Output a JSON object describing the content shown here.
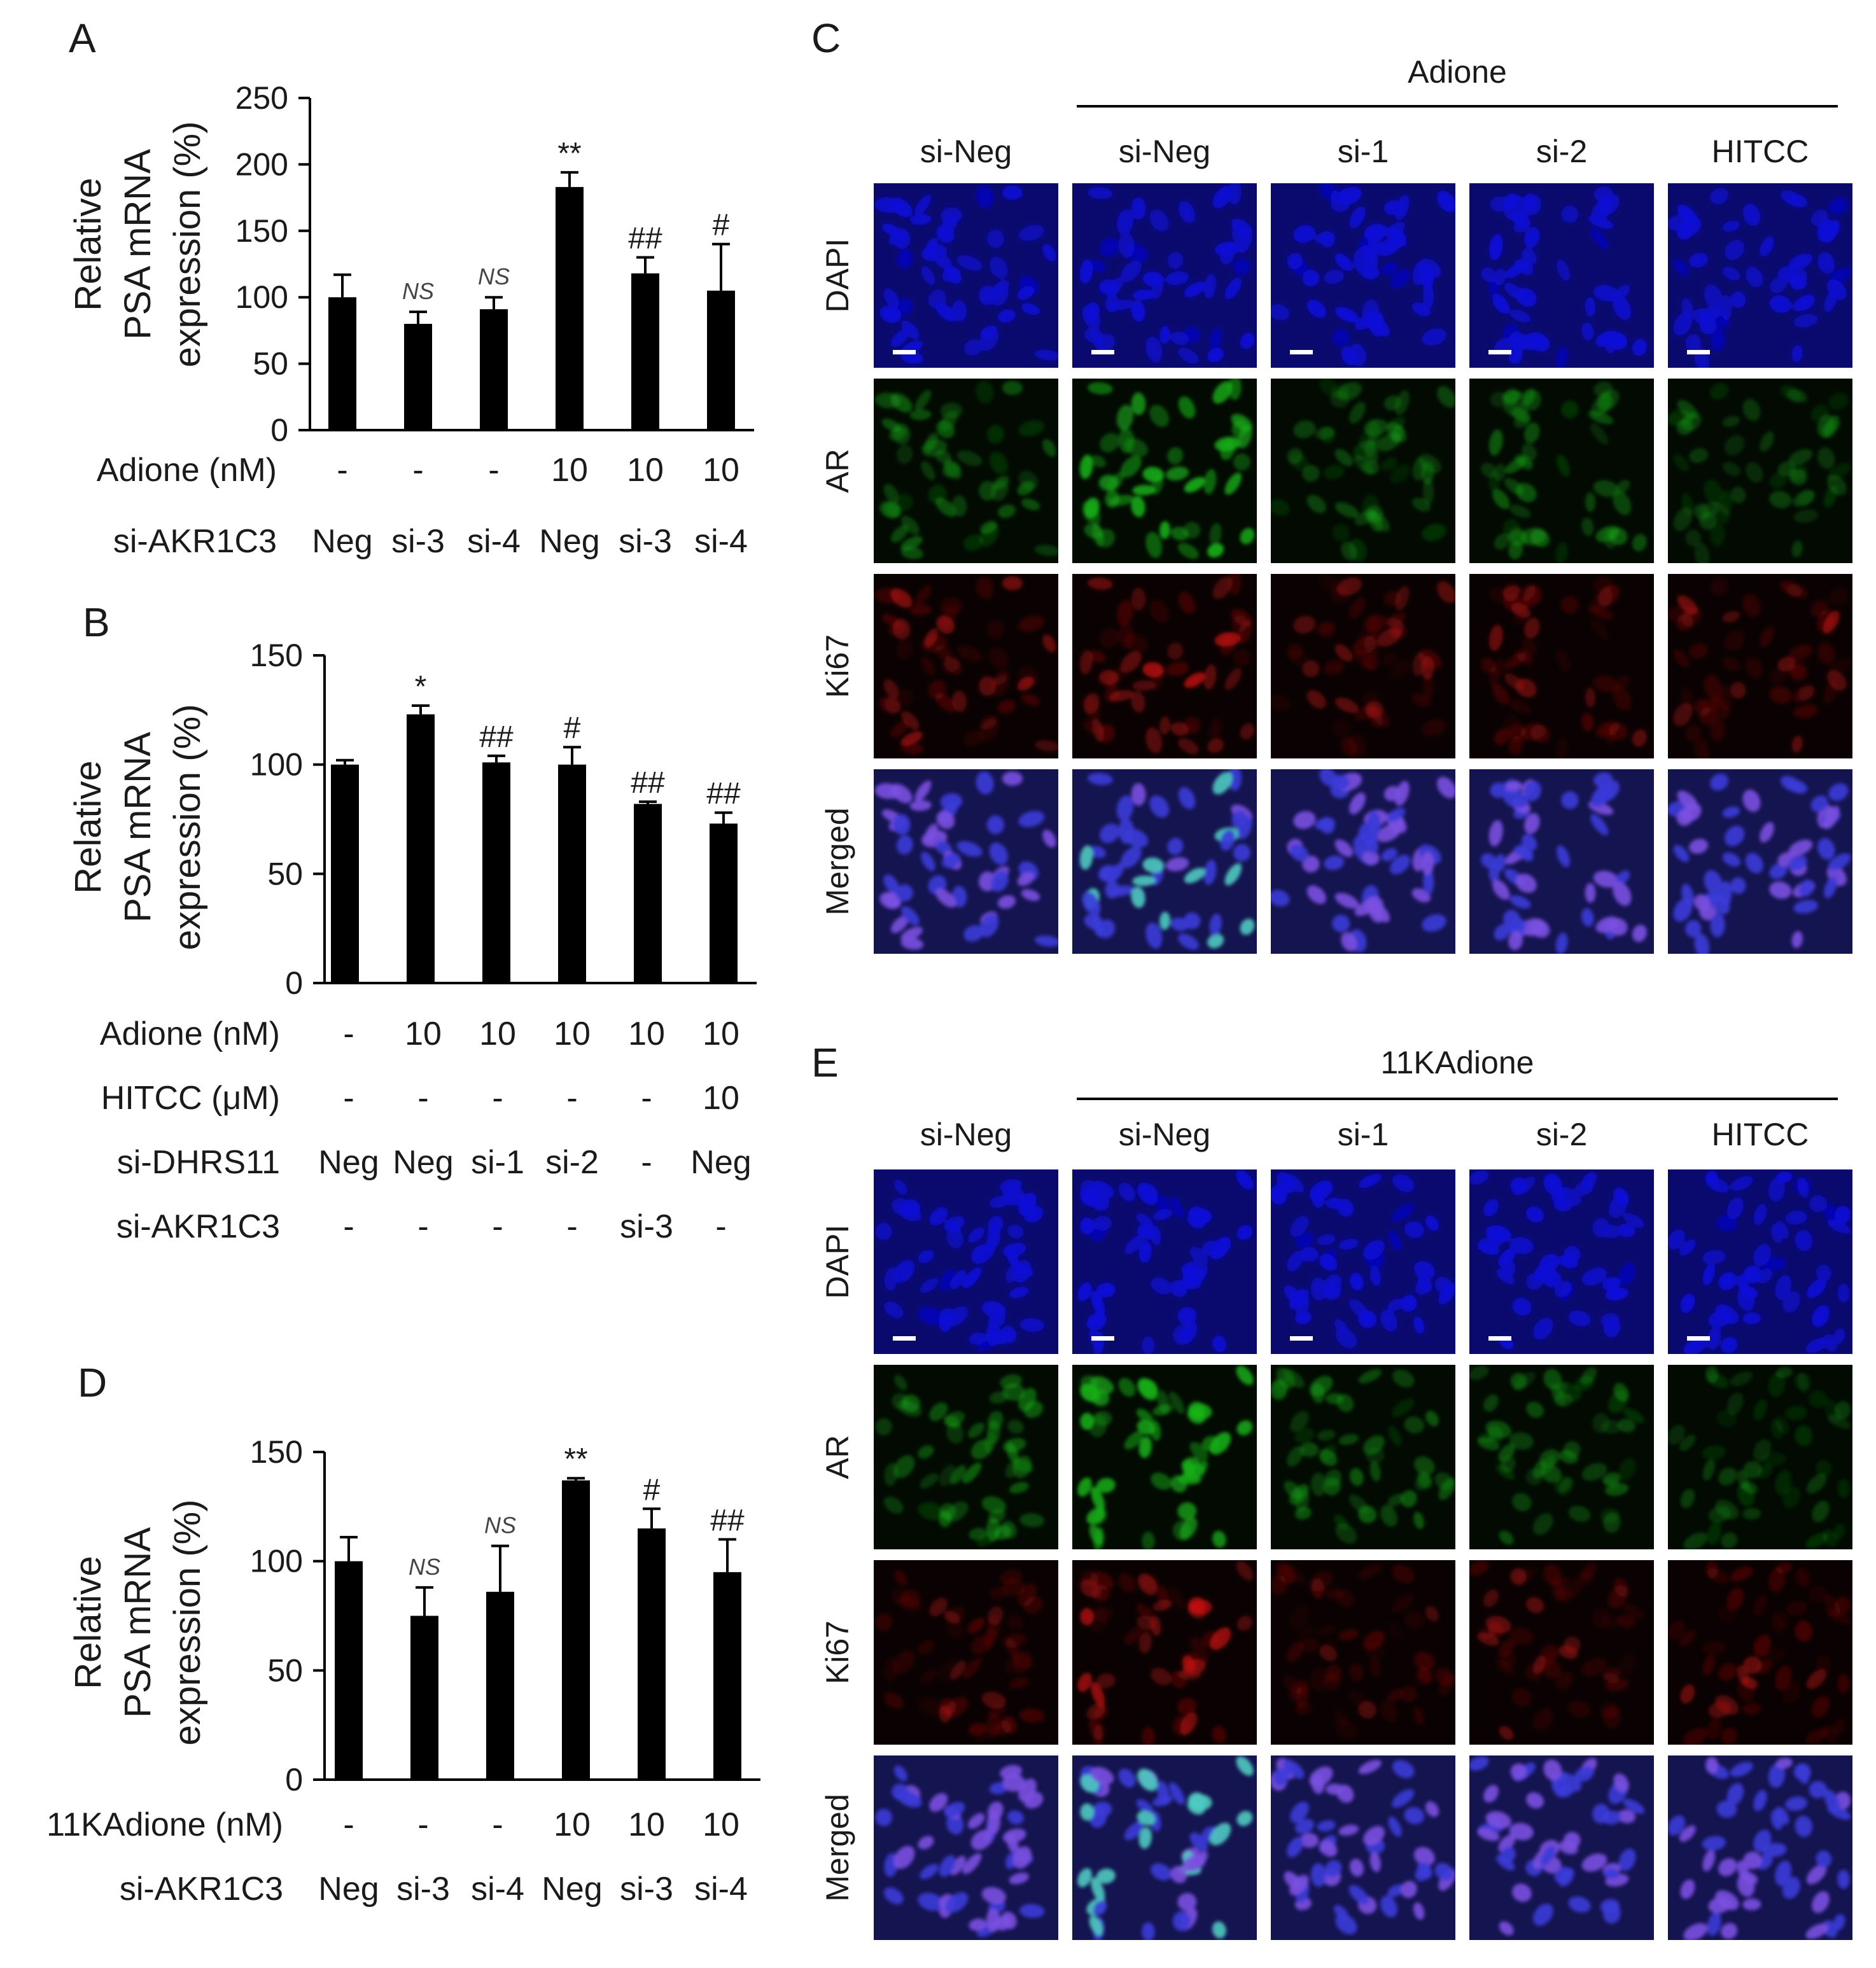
{
  "colors": {
    "bar": "#000000",
    "dapi": "#0a0ad8",
    "ar": "#19b419",
    "ki67": "#d81414",
    "merged_bg": "#141450"
  },
  "panels": {
    "A": {
      "letter": "A"
    },
    "B": {
      "letter": "B"
    },
    "C": {
      "letter": "C"
    },
    "D": {
      "letter": "D"
    },
    "E": {
      "letter": "E"
    }
  },
  "chart_data": [
    {
      "id": "A",
      "type": "bar",
      "ylabel_lines": [
        "Relative",
        "PSA mRNA",
        "expression (%)"
      ],
      "ylim": [
        0,
        250
      ],
      "yticks": [
        0,
        50,
        100,
        150,
        200,
        250
      ],
      "values": [
        100,
        80,
        91,
        183,
        118,
        105
      ],
      "errors": [
        17,
        9,
        9,
        11,
        12,
        35
      ],
      "significance": [
        "",
        "NS",
        "NS",
        "**",
        "##",
        "#"
      ],
      "conditions": [
        {
          "label": "Adione (nM)",
          "values": [
            "-",
            "-",
            "-",
            "10",
            "10",
            "10"
          ]
        },
        {
          "label": "si-AKR1C3",
          "values": [
            "Neg",
            "si-3",
            "si-4",
            "Neg",
            "si-3",
            "si-4"
          ]
        }
      ]
    },
    {
      "id": "B",
      "type": "bar",
      "ylabel_lines": [
        "Relative",
        "PSA mRNA",
        "expression (%)"
      ],
      "ylim": [
        0,
        150
      ],
      "yticks": [
        0,
        50,
        100,
        150
      ],
      "values": [
        100,
        123,
        101,
        100,
        82,
        73
      ],
      "errors": [
        2,
        4,
        3,
        8,
        1,
        5
      ],
      "significance": [
        "",
        "*",
        "##",
        "#",
        "##",
        "##"
      ],
      "conditions": [
        {
          "label": "Adione (nM)",
          "values": [
            "-",
            "10",
            "10",
            "10",
            "10",
            "10"
          ]
        },
        {
          "label": "HITCC (μM)",
          "values": [
            "-",
            "-",
            "-",
            "-",
            "-",
            "10"
          ]
        },
        {
          "label": "si-DHRS11",
          "values": [
            "Neg",
            "Neg",
            "si-1",
            "si-2",
            "-",
            "Neg"
          ]
        },
        {
          "label": "si-AKR1C3",
          "values": [
            "-",
            "-",
            "-",
            "-",
            "si-3",
            "-"
          ]
        }
      ]
    },
    {
      "id": "D",
      "type": "bar",
      "ylabel_lines": [
        "Relative",
        "PSA mRNA",
        "expression (%)"
      ],
      "ylim": [
        0,
        150
      ],
      "yticks": [
        0,
        50,
        100,
        150
      ],
      "values": [
        100,
        75,
        86,
        137,
        115,
        95
      ],
      "errors": [
        11,
        13,
        21,
        1,
        9,
        15
      ],
      "significance": [
        "",
        "NS",
        "NS",
        "**",
        "#",
        "##"
      ],
      "conditions": [
        {
          "label": "11KAdione (nM)",
          "values": [
            "-",
            "-",
            "-",
            "10",
            "10",
            "10"
          ]
        },
        {
          "label": "si-AKR1C3",
          "values": [
            "Neg",
            "si-3",
            "si-4",
            "Neg",
            "si-3",
            "si-4"
          ]
        }
      ]
    }
  ],
  "micrographs": [
    {
      "id": "C",
      "group_label": "Adione",
      "columns": [
        "si-Neg",
        "si-Neg",
        "si-1",
        "si-2",
        "HITCC"
      ],
      "rows": [
        "DAPI",
        "AR",
        "Ki67",
        "Merged"
      ],
      "ar_intensity": [
        0.45,
        0.9,
        0.35,
        0.45,
        0.35
      ],
      "ki67_intensity": [
        0.55,
        0.75,
        0.4,
        0.45,
        0.5
      ]
    },
    {
      "id": "E",
      "group_label": "11KAdione",
      "columns": [
        "si-Neg",
        "si-Neg",
        "si-1",
        "si-2",
        "HITCC"
      ],
      "rows": [
        "DAPI",
        "AR",
        "Ki67",
        "Merged"
      ],
      "ar_intensity": [
        0.5,
        0.85,
        0.45,
        0.4,
        0.3
      ],
      "ki67_intensity": [
        0.4,
        0.65,
        0.3,
        0.4,
        0.45
      ]
    }
  ]
}
